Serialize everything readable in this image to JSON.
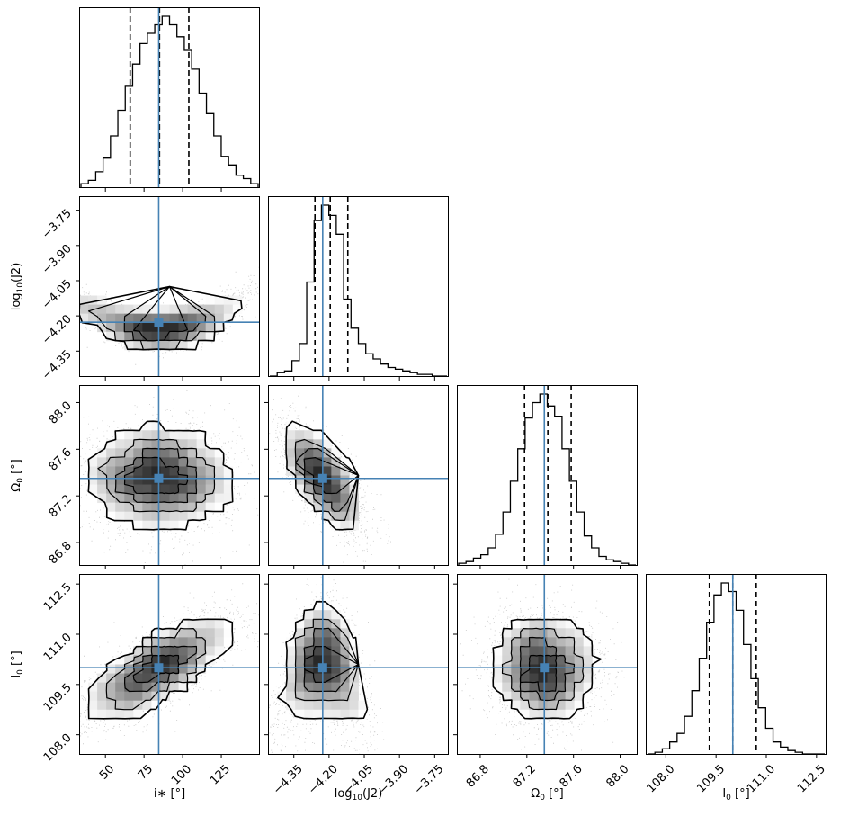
{
  "chart_data": {
    "type": "corner",
    "parameters": [
      {
        "key": "incl",
        "label": "i∗ [°]",
        "range": [
          33,
          150
        ],
        "ticks": [
          50,
          75,
          100,
          125
        ],
        "tick_labels": [
          "50",
          "75",
          "100",
          "125"
        ],
        "truth": 84.5,
        "quantiles": [
          66,
          85,
          104
        ],
        "mean": 85,
        "sd": 20,
        "hist": [
          0.02,
          0.04,
          0.09,
          0.17,
          0.3,
          0.45,
          0.59,
          0.72,
          0.84,
          0.9,
          0.95,
          1.0,
          0.95,
          0.88,
          0.8,
          0.69,
          0.55,
          0.43,
          0.3,
          0.18,
          0.13,
          0.07,
          0.05,
          0.02
        ]
      },
      {
        "key": "logJ2",
        "label": "log10(J2)",
        "label_main": "log",
        "label_sub": "10",
        "label_rest": "(J2)",
        "range": [
          -4.46,
          -3.69
        ],
        "ticks": [
          -4.35,
          -4.2,
          -4.05,
          -3.9,
          -3.75
        ],
        "tick_labels": [
          "−4.35",
          "−4.20",
          "−4.05",
          "−3.90",
          "−3.75"
        ],
        "truth": -4.227,
        "quantiles": [
          -4.26,
          -4.195,
          -4.12
        ],
        "mean": -4.2,
        "sd": 0.07,
        "hist": [
          0.0,
          0.02,
          0.03,
          0.09,
          0.19,
          0.55,
          0.91,
          1.0,
          0.94,
          0.83,
          0.45,
          0.28,
          0.19,
          0.13,
          0.1,
          0.07,
          0.05,
          0.04,
          0.03,
          0.02,
          0.01,
          0.01,
          0.0,
          0.0
        ]
      },
      {
        "key": "Omega0",
        "label": "Ω0 [°]",
        "label_main": "Ω",
        "label_sub": "0",
        "label_rest": " [°]",
        "range": [
          86.6,
          88.15
        ],
        "ticks": [
          86.8,
          87.2,
          87.6,
          88.0
        ],
        "tick_labels": [
          "86.8",
          "87.2",
          "87.6",
          "88.0"
        ],
        "truth": 87.35,
        "quantiles": [
          87.18,
          87.38,
          87.58
        ],
        "mean": 87.38,
        "sd": 0.19,
        "hist": [
          0.01,
          0.02,
          0.04,
          0.06,
          0.1,
          0.18,
          0.31,
          0.49,
          0.68,
          0.86,
          0.95,
          1.0,
          0.93,
          0.87,
          0.68,
          0.49,
          0.31,
          0.17,
          0.1,
          0.05,
          0.03,
          0.02,
          0.01,
          0.0
        ]
      },
      {
        "key": "I0",
        "label": "I0 [°]",
        "label_main": "I",
        "label_sub": "0",
        "label_rest": " [°]",
        "range": [
          107.4,
          112.8
        ],
        "ticks": [
          108.0,
          109.5,
          111.0,
          112.5
        ],
        "tick_labels": [
          "108.0",
          "109.5",
          "111.0",
          "112.5"
        ],
        "truth": 110.0,
        "quantiles": [
          109.3,
          110.0,
          110.7
        ],
        "mean": 110.0,
        "sd": 0.68,
        "hist": [
          0.0,
          0.01,
          0.03,
          0.07,
          0.12,
          0.22,
          0.37,
          0.56,
          0.77,
          0.93,
          1.0,
          0.95,
          0.84,
          0.64,
          0.44,
          0.27,
          0.15,
          0.07,
          0.04,
          0.02,
          0.01,
          0.0,
          0.0,
          0.0
        ]
      }
    ],
    "pairs": [
      {
        "row": 1,
        "col": 0,
        "shape": "banana",
        "center": [
          84.5,
          -4.227
        ]
      },
      {
        "row": 2,
        "col": 0,
        "corr": 0.0,
        "center": [
          84.5,
          87.35
        ]
      },
      {
        "row": 2,
        "col": 1,
        "corr": -0.7,
        "center": [
          -4.227,
          87.35
        ]
      },
      {
        "row": 3,
        "col": 0,
        "corr": 0.75,
        "center": [
          84.5,
          110.0
        ]
      },
      {
        "row": 3,
        "col": 1,
        "shape": "kidney",
        "center": [
          -4.227,
          110.0
        ]
      },
      {
        "row": 3,
        "col": 2,
        "corr": 0.0,
        "center": [
          87.35,
          110.0
        ]
      }
    ],
    "truth_color": "#4682b4",
    "contour_color": "#000000",
    "scatter_color": "#000000"
  }
}
